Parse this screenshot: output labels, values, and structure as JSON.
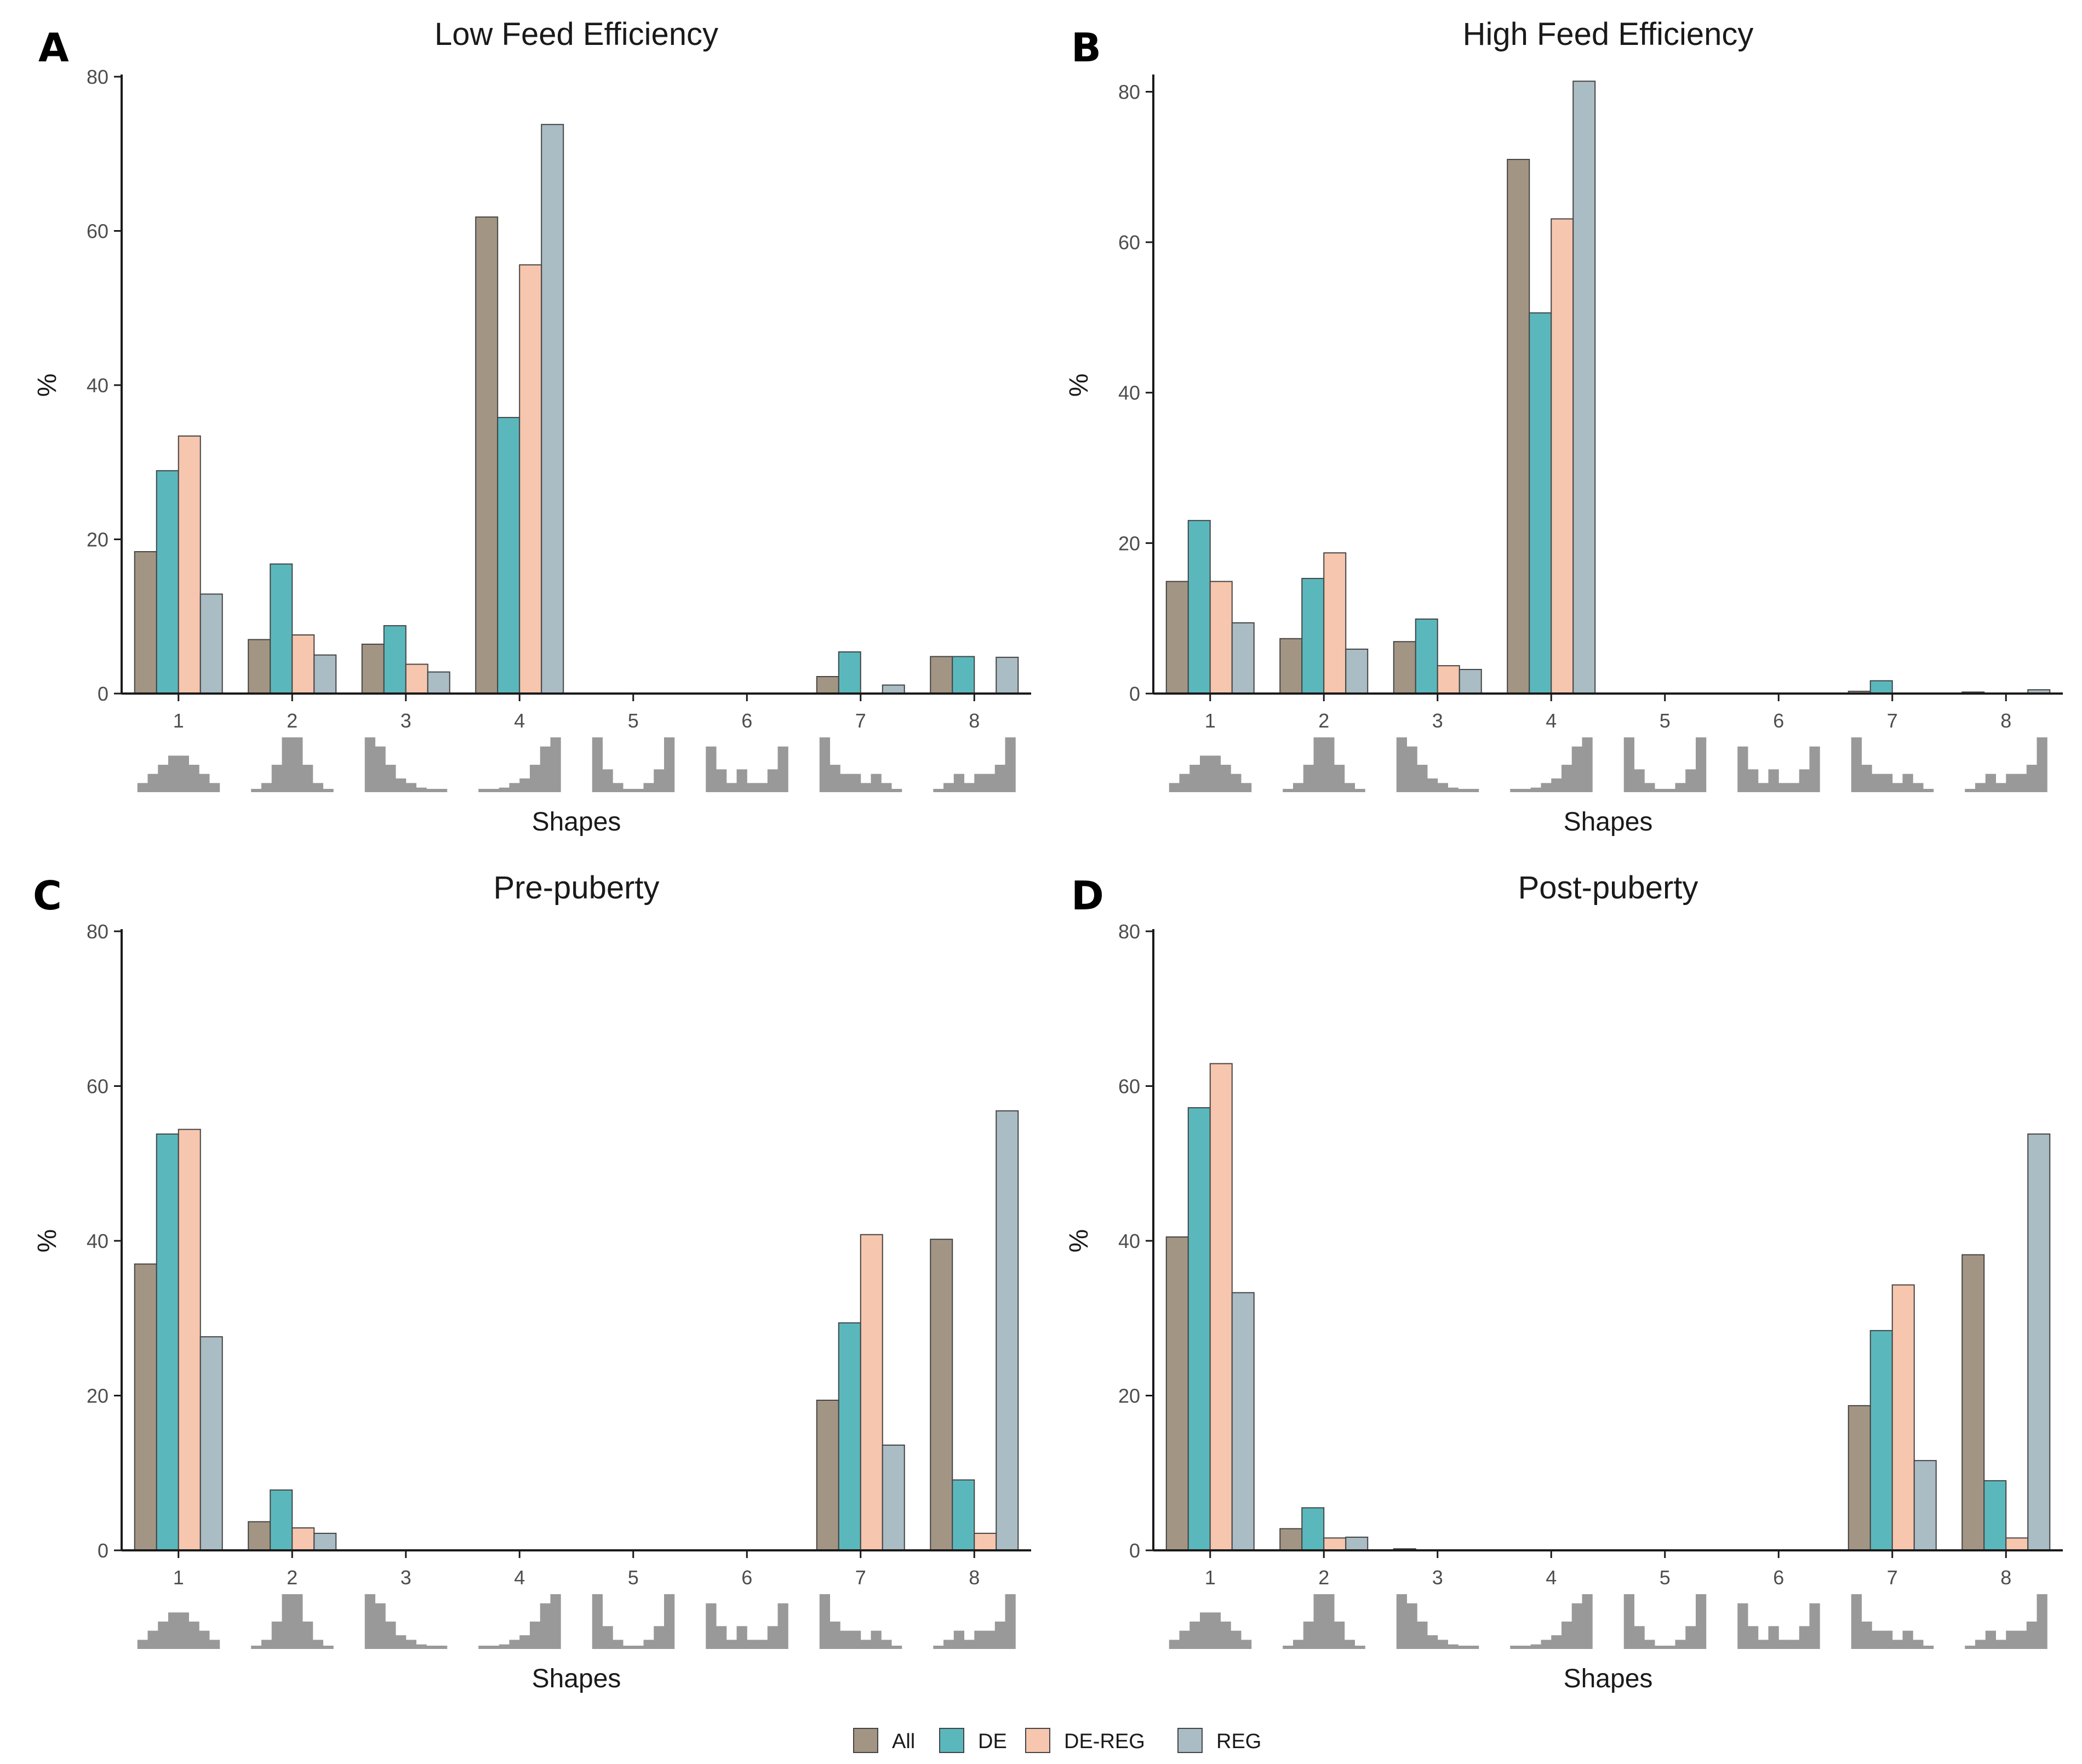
{
  "colors": {
    "All": "#a39584",
    "DE": "#5ab8bd",
    "DE-REG": "#f7c6ae",
    "REG": "#aabcc4",
    "shape_icon": "#999999",
    "axis": "#1a1a1a",
    "bar_outline": "#444444"
  },
  "legend": {
    "items": [
      "All",
      "DE",
      "DE-REG",
      "REG"
    ]
  },
  "shape_icons": [
    {
      "id": 1,
      "name": "bell-shape-icon",
      "heights": [
        1,
        2,
        3,
        4,
        4,
        3,
        2,
        1
      ]
    },
    {
      "id": 2,
      "name": "narrow-peak-shape-icon",
      "heights": [
        0.3,
        1,
        3,
        6,
        6,
        3,
        1,
        0.3
      ]
    },
    {
      "id": 3,
      "name": "early-peak-shape-icon",
      "heights": [
        6,
        5,
        3,
        1.5,
        1,
        0.5,
        0.3,
        0
      ]
    },
    {
      "id": 4,
      "name": "late-peak-shape-icon",
      "heights": [
        0,
        0.3,
        0.5,
        1,
        1.5,
        3,
        5,
        6
      ]
    },
    {
      "id": 5,
      "name": "u-shape-icon",
      "heights": [
        6,
        2.5,
        1,
        0.3,
        0.3,
        1,
        2.5,
        6
      ]
    },
    {
      "id": 6,
      "name": "double-peak-shape-icon",
      "heights": [
        5,
        2.5,
        1,
        2.5,
        1,
        1,
        2.5,
        5
      ]
    },
    {
      "id": 7,
      "name": "early-multimodal-shape-icon",
      "heights": [
        6,
        3,
        2,
        2,
        1,
        2,
        1,
        0
      ]
    },
    {
      "id": 8,
      "name": "late-multimodal-shape-icon",
      "heights": [
        0,
        1,
        2,
        1,
        2,
        2,
        3,
        6
      ]
    }
  ],
  "chart_data": [
    {
      "panel": "A",
      "type": "bar",
      "title": "Low Feed Efficiency",
      "xlabel": "Shapes",
      "ylabel": "%",
      "ylim": [
        0,
        80
      ],
      "yticks": [
        0,
        20,
        40,
        60,
        80
      ],
      "categories": [
        "1",
        "2",
        "3",
        "4",
        "5",
        "6",
        "7",
        "8"
      ],
      "series": [
        {
          "name": "All",
          "values": [
            18.4,
            7.0,
            6.4,
            61.8,
            0,
            0,
            2.2,
            4.8
          ]
        },
        {
          "name": "DE",
          "values": [
            28.9,
            16.8,
            8.8,
            35.8,
            0,
            0,
            5.4,
            4.8
          ]
        },
        {
          "name": "DE-REG",
          "values": [
            33.4,
            7.6,
            3.8,
            55.6,
            0,
            0,
            0,
            0
          ]
        },
        {
          "name": "REG",
          "values": [
            12.9,
            5.0,
            2.8,
            73.8,
            0,
            0,
            1.1,
            4.7
          ]
        }
      ]
    },
    {
      "panel": "B",
      "type": "bar",
      "title": "High Feed Efficiency",
      "xlabel": "Shapes",
      "ylabel": "%",
      "ylim": [
        0,
        82
      ],
      "yticks": [
        0,
        20,
        40,
        60,
        80
      ],
      "categories": [
        "1",
        "2",
        "3",
        "4",
        "5",
        "6",
        "7",
        "8"
      ],
      "series": [
        {
          "name": "All",
          "values": [
            14.9,
            7.3,
            6.9,
            71.0,
            0,
            0,
            0.3,
            0.2
          ]
        },
        {
          "name": "DE",
          "values": [
            23.0,
            15.3,
            9.9,
            50.6,
            0,
            0,
            1.7,
            0
          ]
        },
        {
          "name": "DE-REG",
          "values": [
            14.9,
            18.7,
            3.7,
            63.1,
            0,
            0,
            0,
            0
          ]
        },
        {
          "name": "REG",
          "values": [
            9.4,
            5.9,
            3.2,
            81.4,
            0,
            0,
            0,
            0.5
          ]
        }
      ]
    },
    {
      "panel": "C",
      "type": "bar",
      "title": "Pre-puberty",
      "xlabel": "Shapes",
      "ylabel": "%",
      "ylim": [
        0,
        80
      ],
      "yticks": [
        0,
        20,
        40,
        60,
        80
      ],
      "categories": [
        "1",
        "2",
        "3",
        "4",
        "5",
        "6",
        "7",
        "8"
      ],
      "series": [
        {
          "name": "All",
          "values": [
            37.0,
            3.7,
            0,
            0,
            0,
            0,
            19.4,
            40.2
          ]
        },
        {
          "name": "DE",
          "values": [
            53.8,
            7.8,
            0,
            0,
            0,
            0,
            29.4,
            9.1
          ]
        },
        {
          "name": "DE-REG",
          "values": [
            54.4,
            2.9,
            0,
            0,
            0,
            0,
            40.8,
            2.2
          ]
        },
        {
          "name": "REG",
          "values": [
            27.6,
            2.2,
            0,
            0,
            0,
            0,
            13.6,
            56.8
          ]
        }
      ]
    },
    {
      "panel": "D",
      "type": "bar",
      "title": "Post-puberty",
      "xlabel": "Shapes",
      "ylabel": "%",
      "ylim": [
        0,
        80
      ],
      "yticks": [
        0,
        20,
        40,
        60,
        80
      ],
      "categories": [
        "1",
        "2",
        "3",
        "4",
        "5",
        "6",
        "7",
        "8"
      ],
      "series": [
        {
          "name": "All",
          "values": [
            40.5,
            2.8,
            0.2,
            0,
            0,
            0,
            18.7,
            38.2
          ]
        },
        {
          "name": "DE",
          "values": [
            57.2,
            5.5,
            0,
            0,
            0,
            0,
            28.4,
            9.0
          ]
        },
        {
          "name": "DE-REG",
          "values": [
            62.9,
            1.6,
            0,
            0,
            0,
            0,
            34.3,
            1.6
          ]
        },
        {
          "name": "REG",
          "values": [
            33.3,
            1.7,
            0,
            0,
            0,
            0,
            11.6,
            53.8
          ]
        }
      ]
    }
  ]
}
